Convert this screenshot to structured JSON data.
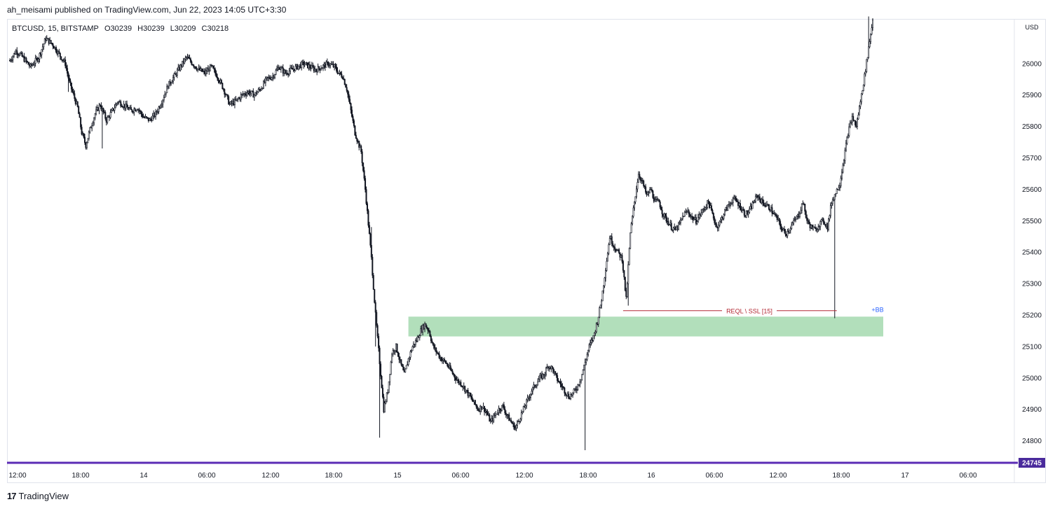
{
  "header": {
    "publisher_line": "ah_meisami published on TradingView.com, Jun 22, 2023 14:05 UTC+3:30"
  },
  "legend": {
    "symbol": "BTCUSD, 15, BITSTAMP",
    "open": "O30239",
    "high": "H30239",
    "low": "L30209",
    "close": "C30218"
  },
  "footer": {
    "brand": "TradingView",
    "logo": "17"
  },
  "colors": {
    "up": "#26a69a",
    "down": "#131722",
    "zone": "#b2dfbb",
    "level_line": "#b22833",
    "price_line": "#5b2bb5",
    "tag_bg": "#4a2a9c",
    "bb": "#2962ff"
  },
  "chart_data": {
    "type": "candlestick",
    "title": "",
    "xlabel": "",
    "ylabel": "USD",
    "ylim": [
      24730,
      26140
    ],
    "y_ticks": [
      26000,
      25900,
      25800,
      25700,
      25600,
      25500,
      25400,
      25300,
      25200,
      25100,
      25000,
      24900,
      24800
    ],
    "x_ticks": [
      "12:00",
      "18:00",
      "14",
      "06:00",
      "12:00",
      "18:00",
      "15",
      "06:00",
      "12:00",
      "18:00",
      "16",
      "06:00",
      "12:00",
      "18:00",
      "17",
      "06:00"
    ],
    "currency_label": "USD",
    "last_price_tag": "24745",
    "last_price": 24745,
    "zone": {
      "top": 25195,
      "bottom": 25132,
      "label": ""
    },
    "level": {
      "price": 25214,
      "label": "REQL \\ SSL [15]",
      "tag": "+BB"
    },
    "path": [
      [
        0,
        26010
      ],
      [
        6,
        26040
      ],
      [
        10,
        26030
      ],
      [
        20,
        25990
      ],
      [
        28,
        26020
      ],
      [
        35,
        26080
      ],
      [
        42,
        26060
      ],
      [
        48,
        26030
      ],
      [
        54,
        26000
      ],
      [
        58,
        25940
      ],
      [
        62,
        25900
      ],
      [
        66,
        25860
      ],
      [
        70,
        25780
      ],
      [
        74,
        25740
      ],
      [
        78,
        25790
      ],
      [
        83,
        25840
      ],
      [
        88,
        25870
      ],
      [
        94,
        25820
      ],
      [
        100,
        25850
      ],
      [
        105,
        25880
      ],
      [
        110,
        25870
      ],
      [
        118,
        25850
      ],
      [
        124,
        25860
      ],
      [
        130,
        25830
      ],
      [
        136,
        25820
      ],
      [
        142,
        25840
      ],
      [
        148,
        25880
      ],
      [
        154,
        25930
      ],
      [
        160,
        25960
      ],
      [
        166,
        25990
      ],
      [
        172,
        26020
      ],
      [
        178,
        26000
      ],
      [
        184,
        25980
      ],
      [
        190,
        25970
      ],
      [
        196,
        25990
      ],
      [
        202,
        25960
      ],
      [
        208,
        25920
      ],
      [
        214,
        25870
      ],
      [
        220,
        25880
      ],
      [
        226,
        25900
      ],
      [
        232,
        25910
      ],
      [
        238,
        25900
      ],
      [
        244,
        25920
      ],
      [
        250,
        25950
      ],
      [
        256,
        25960
      ],
      [
        262,
        25990
      ],
      [
        268,
        25970
      ],
      [
        274,
        25980
      ],
      [
        280,
        25990
      ],
      [
        286,
        26000
      ],
      [
        292,
        25990
      ],
      [
        298,
        25980
      ],
      [
        304,
        25990
      ],
      [
        310,
        26000
      ],
      [
        316,
        25990
      ],
      [
        320,
        25970
      ],
      [
        324,
        25960
      ],
      [
        328,
        25920
      ],
      [
        332,
        25850
      ],
      [
        336,
        25780
      ],
      [
        342,
        25720
      ],
      [
        346,
        25600
      ],
      [
        352,
        25380
      ],
      [
        356,
        25200
      ],
      [
        360,
        25050
      ],
      [
        364,
        24900
      ],
      [
        368,
        24960
      ],
      [
        372,
        25080
      ],
      [
        376,
        25100
      ],
      [
        380,
        25050
      ],
      [
        384,
        25010
      ],
      [
        388,
        25060
      ],
      [
        392,
        25100
      ],
      [
        396,
        25120
      ],
      [
        400,
        25150
      ],
      [
        404,
        25170
      ],
      [
        408,
        25150
      ],
      [
        412,
        25100
      ],
      [
        416,
        25080
      ],
      [
        420,
        25060
      ],
      [
        424,
        25050
      ],
      [
        428,
        25030
      ],
      [
        432,
        25010
      ],
      [
        436,
        24990
      ],
      [
        440,
        24980
      ],
      [
        444,
        24960
      ],
      [
        448,
        24940
      ],
      [
        452,
        24920
      ],
      [
        456,
        24900
      ],
      [
        460,
        24910
      ],
      [
        464,
        24890
      ],
      [
        468,
        24860
      ],
      [
        472,
        24880
      ],
      [
        476,
        24900
      ],
      [
        480,
        24910
      ],
      [
        484,
        24880
      ],
      [
        488,
        24860
      ],
      [
        492,
        24840
      ],
      [
        496,
        24870
      ],
      [
        500,
        24900
      ],
      [
        504,
        24930
      ],
      [
        508,
        24960
      ],
      [
        512,
        24980
      ],
      [
        516,
        25000
      ],
      [
        520,
        25010
      ],
      [
        524,
        25040
      ],
      [
        528,
        25030
      ],
      [
        532,
        25000
      ],
      [
        536,
        24980
      ],
      [
        540,
        24960
      ],
      [
        544,
        24940
      ],
      [
        548,
        24950
      ],
      [
        552,
        24970
      ],
      [
        556,
        25000
      ],
      [
        560,
        25050
      ],
      [
        564,
        25100
      ],
      [
        568,
        25130
      ],
      [
        572,
        25180
      ],
      [
        576,
        25250
      ],
      [
        580,
        25350
      ],
      [
        584,
        25450
      ],
      [
        588,
        25420
      ],
      [
        592,
        25400
      ],
      [
        596,
        25380
      ],
      [
        600,
        25250
      ],
      [
        604,
        25460
      ],
      [
        608,
        25560
      ],
      [
        612,
        25650
      ],
      [
        616,
        25620
      ],
      [
        620,
        25580
      ],
      [
        624,
        25600
      ],
      [
        628,
        25560
      ],
      [
        632,
        25560
      ],
      [
        636,
        25520
      ],
      [
        640,
        25500
      ],
      [
        644,
        25480
      ],
      [
        648,
        25470
      ],
      [
        652,
        25490
      ],
      [
        656,
        25520
      ],
      [
        660,
        25530
      ],
      [
        664,
        25510
      ],
      [
        668,
        25500
      ],
      [
        672,
        25520
      ],
      [
        676,
        25540
      ],
      [
        680,
        25560
      ],
      [
        684,
        25520
      ],
      [
        688,
        25480
      ],
      [
        692,
        25500
      ],
      [
        696,
        25530
      ],
      [
        700,
        25550
      ],
      [
        704,
        25570
      ],
      [
        708,
        25560
      ],
      [
        712,
        25540
      ],
      [
        716,
        25520
      ],
      [
        720,
        25530
      ],
      [
        724,
        25560
      ],
      [
        728,
        25580
      ],
      [
        732,
        25560
      ],
      [
        736,
        25550
      ],
      [
        740,
        25540
      ],
      [
        744,
        25520
      ],
      [
        748,
        25500
      ],
      [
        752,
        25470
      ],
      [
        756,
        25460
      ],
      [
        760,
        25480
      ],
      [
        764,
        25500
      ],
      [
        768,
        25520
      ],
      [
        772,
        25560
      ],
      [
        776,
        25500
      ],
      [
        780,
        25480
      ],
      [
        784,
        25470
      ],
      [
        788,
        25490
      ],
      [
        792,
        25500
      ],
      [
        796,
        25480
      ],
      [
        800,
        25560
      ],
      [
        804,
        25590
      ],
      [
        808,
        25620
      ],
      [
        812,
        25700
      ],
      [
        816,
        25780
      ],
      [
        820,
        25830
      ],
      [
        824,
        25800
      ],
      [
        828,
        25880
      ],
      [
        832,
        25960
      ],
      [
        836,
        26050
      ],
      [
        840,
        26140
      ]
    ],
    "shocks": [
      [
        57,
        25910
      ],
      [
        90,
        25730
      ],
      [
        352,
        25480
      ],
      [
        356,
        25100
      ],
      [
        360,
        24810
      ],
      [
        560,
        24770
      ],
      [
        602,
        25230
      ],
      [
        803,
        25190
      ],
      [
        836,
        26150
      ]
    ]
  }
}
